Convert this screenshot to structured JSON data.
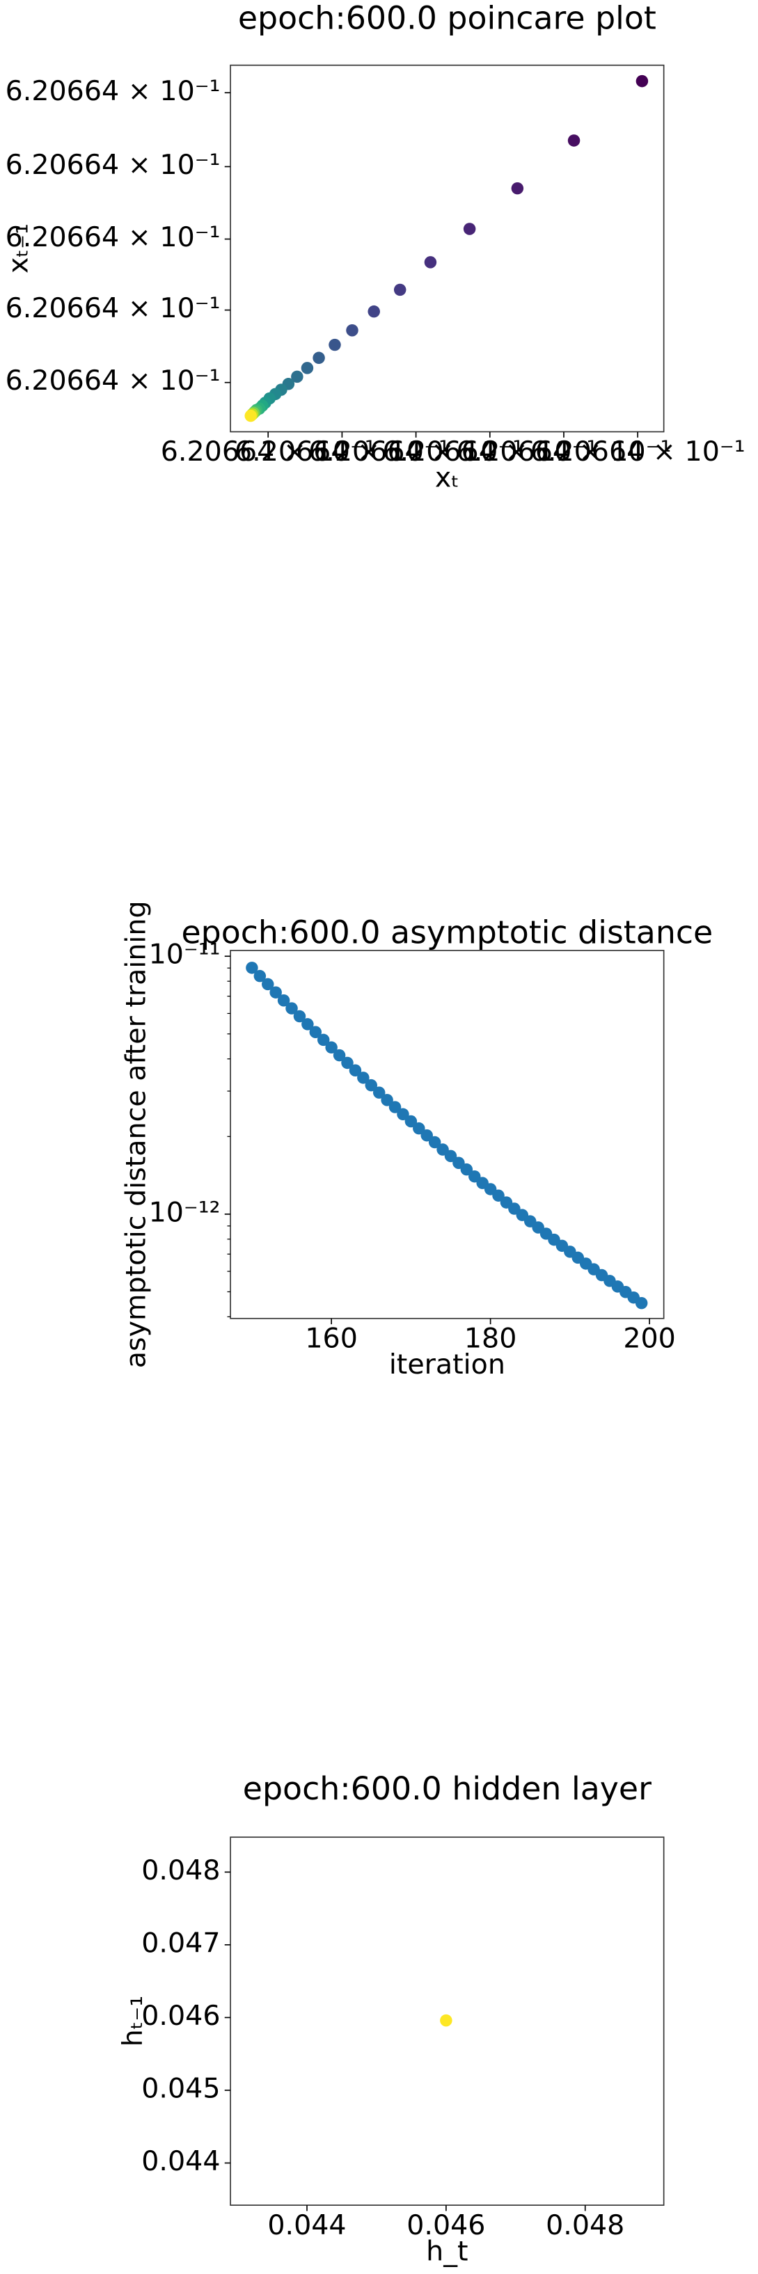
{
  "chart_data": [
    {
      "type": "scatter",
      "title": "epoch:600.0 poincare plot",
      "xlabel": "xₜ",
      "ylabel": "xₜ₋₁",
      "x": [
        0.620664000284,
        0.620664000237,
        0.620664000198,
        0.620664000165,
        0.620664000138,
        0.620664000117,
        0.620664000099,
        0.620664000084,
        0.620664000072,
        0.620664000061,
        0.620664000053,
        0.620664000046,
        0.62066400004,
        0.620664000035,
        0.620664000031,
        0.620664000027,
        0.620664000024,
        0.620664000022,
        0.62066400002,
        0.620664000018,
        0.620664000017,
        0.620664000016,
        0.620664000015,
        0.620664000014
      ],
      "y": [
        0.620664000242,
        0.620664000201,
        0.620664000168,
        0.62066400014,
        0.620664000117,
        0.620664000098,
        0.620664000083,
        0.62066400007,
        0.62066400006,
        0.620664000051,
        0.620664000044,
        0.620664000038,
        0.620664000033,
        0.620664000029,
        0.620664000026,
        0.620664000023,
        0.62066400002,
        0.620664000018,
        0.620664000016,
        0.620664000015,
        0.620664000014,
        0.620664000013,
        0.620664000012,
        0.620664000011
      ],
      "colors": [
        "#440154",
        "#470e61",
        "#481b6d",
        "#482576",
        "#46307e",
        "#443a83",
        "#414487",
        "#3d4e8a",
        "#39568c",
        "#355f8d",
        "#31688e",
        "#2d708e",
        "#2a788e",
        "#27808e",
        "#23888e",
        "#21918c",
        "#1f988b",
        "#22a884",
        "#2ab07f",
        "#35b779",
        "#44bf70",
        "#7ad151",
        "#bddf26",
        "#fde725"
      ],
      "xlim": [
        0.620664,
        0.620664000299
      ],
      "ylim": [
        0.620664,
        0.620664000253
      ],
      "xticks": [
        {
          "value": 0.620664000026,
          "label": "6.20664 × 10⁻¹"
        },
        {
          "value": 0.620664000077,
          "label": "6.20664 × 10⁻¹"
        },
        {
          "value": 0.620664000128,
          "label": "6.20664 × 10⁻¹"
        },
        {
          "value": 0.620664000179,
          "label": "6.20664 × 10⁻¹"
        },
        {
          "value": 0.62066400023,
          "label": "6.20664 × 10⁻¹"
        },
        {
          "value": 0.620664000281,
          "label": "6.20664 × 10⁻¹"
        }
      ],
      "yticks": [
        {
          "value": 0.620664000234,
          "label": "6.20664 × 10⁻¹"
        },
        {
          "value": 0.620664000183,
          "label": "6.20664 × 10⁻¹"
        },
        {
          "value": 0.620664000133,
          "label": "6.20664 × 10⁻¹"
        },
        {
          "value": 0.620664000084,
          "label": "6.20664 × 10⁻¹"
        },
        {
          "value": 0.620664000034,
          "label": "6.20664 × 10⁻¹"
        }
      ]
    },
    {
      "type": "scatter",
      "title": "epoch:600.0 asymptotic distance",
      "xlabel": "iteration",
      "ylabel": "asymptotic distance after training",
      "x": [
        150,
        151,
        152,
        153,
        154,
        155,
        156,
        157,
        158,
        159,
        160,
        161,
        162,
        163,
        164,
        165,
        166,
        167,
        168,
        169,
        170,
        171,
        172,
        173,
        174,
        175,
        176,
        177,
        178,
        179,
        180,
        181,
        182,
        183,
        184,
        185,
        186,
        187,
        188,
        189,
        190,
        191,
        192,
        193,
        194,
        195,
        196,
        197,
        198,
        199
      ],
      "y": [
        9.02e-12,
        8.38e-12,
        7.79e-12,
        7.24e-12,
        6.74e-12,
        6.28e-12,
        5.85e-12,
        5.45e-12,
        5.08e-12,
        4.74e-12,
        4.43e-12,
        4.13e-12,
        3.86e-12,
        3.61e-12,
        3.38e-12,
        3.16e-12,
        2.96e-12,
        2.77e-12,
        2.6e-12,
        2.44e-12,
        2.29e-12,
        2.15e-12,
        2.02e-12,
        1.9e-12,
        1.78e-12,
        1.68e-12,
        1.58e-12,
        1.49e-12,
        1.4e-12,
        1.32e-12,
        1.25e-12,
        1.18e-12,
        1.11e-12,
        1.05e-12,
        9.92e-13,
        9.38e-13,
        8.88e-13,
        8.4e-13,
        7.96e-13,
        7.54e-13,
        7.15e-13,
        6.78e-13,
        6.43e-13,
        6.11e-13,
        5.8e-13,
        5.51e-13,
        5.24e-13,
        4.99e-13,
        4.75e-13,
        4.52e-13
      ],
      "color": "#1f77b4",
      "ylog": true,
      "xlim": [
        147.3,
        201.8
      ],
      "ylim": [
        3.94e-13,
        1.053e-11
      ],
      "xticks": [
        160,
        180,
        200
      ],
      "yticks": [
        {
          "value": 1e-11,
          "label": "10⁻¹¹"
        },
        {
          "value": 1e-12,
          "label": "10⁻¹²"
        }
      ],
      "yminorticks": [
        4e-13,
        5e-13,
        6e-13,
        7e-13,
        8e-13,
        9e-13,
        2e-12,
        3e-12,
        4e-12,
        5e-12,
        6e-12,
        7e-12,
        8e-12,
        9e-12
      ]
    },
    {
      "type": "scatter",
      "title": "epoch:600.0 hidden layer",
      "xlabel": "h_t",
      "ylabel": "hₜ₋₁",
      "x": [
        0.046
      ],
      "y": [
        0.04596
      ],
      "color": "#fde725",
      "xlim": [
        0.0429,
        0.04913
      ],
      "ylim": [
        0.04342,
        0.04848
      ],
      "xticks": [
        0.044,
        0.046,
        0.048
      ],
      "yticks": [
        0.044,
        0.045,
        0.046,
        0.047,
        0.048
      ]
    }
  ]
}
